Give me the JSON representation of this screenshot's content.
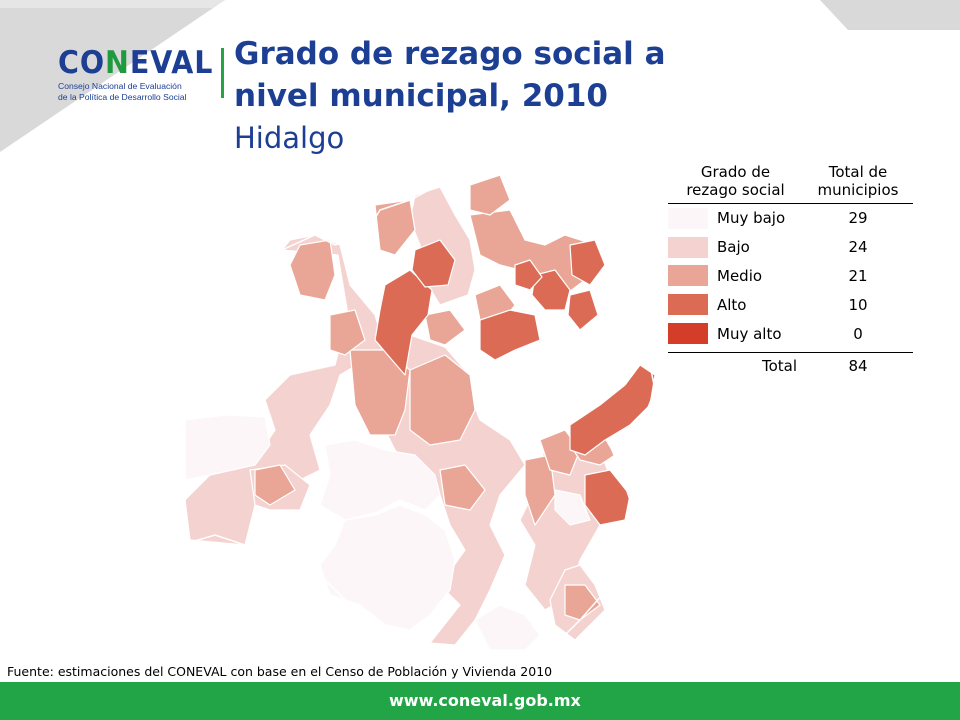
{
  "logo": {
    "word_a": "CO",
    "word_l": "N",
    "word_b": "EVAL",
    "subtitle_line1": "Consejo Nacional de Evaluación",
    "subtitle_line2": "de la Política de Desarrollo Social"
  },
  "title": "Grado de rezago social a nivel municipal, 2010",
  "subtitle": "Hidalgo",
  "legend": {
    "col1_line1": "Grado de",
    "col1_line2": "rezago social",
    "col2_line1": "Total de",
    "col2_line2": "municipios",
    "categories": [
      {
        "label": "Muy bajo",
        "count": "29",
        "color": "#fcf6f8"
      },
      {
        "label": "Bajo",
        "count": "24",
        "color": "#f4d2cf"
      },
      {
        "label": "Medio",
        "count": "21",
        "color": "#e9a596"
      },
      {
        "label": "Alto",
        "count": "10",
        "color": "#dc6b56"
      },
      {
        "label": "Muy alto",
        "count": "0",
        "color": "#d43d28"
      }
    ],
    "total_label": "Total",
    "total_value": "84"
  },
  "source": "Fuente: estimaciones del CONEVAL con base en el Censo de Población y Vivienda 2010",
  "footer": {
    "url": "www.coneval.gob.mx"
  },
  "colors": {
    "corner_gray": "#d9d9d9",
    "title_blue": "#1c3f94",
    "footer_green": "#22a547",
    "border": "#ffffff"
  }
}
